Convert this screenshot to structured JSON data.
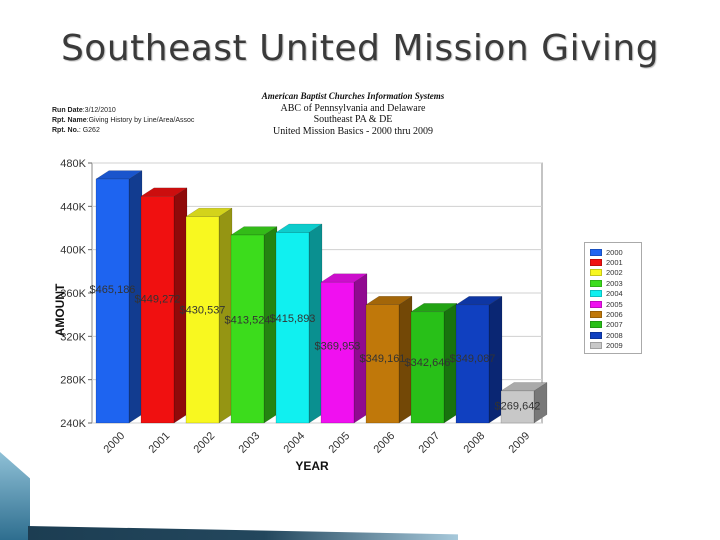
{
  "slide": {
    "title": "Southeast United Mission Giving"
  },
  "report": {
    "org": "American Baptist Churches Information Systems",
    "lines": [
      "ABC of Pennsylvania and Delaware",
      "Southeast PA & DE",
      "United Mission Basics - 2000 thru 2009"
    ],
    "run_date_label": "Run Date",
    "run_date": ":3/12/2010",
    "rpt_name_label": "Rpt. Name",
    "rpt_name": ":Giving History by Line/Area/Assoc",
    "rpt_no_label": "Rpt. No.",
    "rpt_no": ": G262"
  },
  "chart_data": {
    "type": "bar",
    "categories": [
      "2000",
      "2001",
      "2002",
      "2003",
      "2004",
      "2005",
      "2006",
      "2007",
      "2008",
      "2009"
    ],
    "values": [
      465186,
      449272,
      430537,
      413524,
      415893,
      369953,
      349161,
      342646,
      349087,
      269642
    ],
    "data_labels": [
      "$465,186",
      "$449,272",
      "$430,537",
      "$413,524",
      "$415,893",
      "$369,953",
      "$349,161",
      "$342,646",
      "$349,087",
      "$269,642"
    ],
    "colors": [
      "#1e64f0",
      "#f01010",
      "#f8f820",
      "#3cdc1c",
      "#10f0f0",
      "#f010f0",
      "#c0780a",
      "#28c018",
      "#1040c0",
      "#c8c8c8"
    ],
    "xlabel": "YEAR",
    "ylabel": "AMOUNT",
    "ylim": [
      240000,
      480000
    ],
    "yticks": [
      240000,
      280000,
      320000,
      360000,
      400000,
      440000,
      480000
    ],
    "ytick_labels": [
      "240K",
      "280K",
      "320K",
      "360K",
      "400K",
      "440K",
      "480K"
    ],
    "grid": true,
    "legend": "right"
  }
}
